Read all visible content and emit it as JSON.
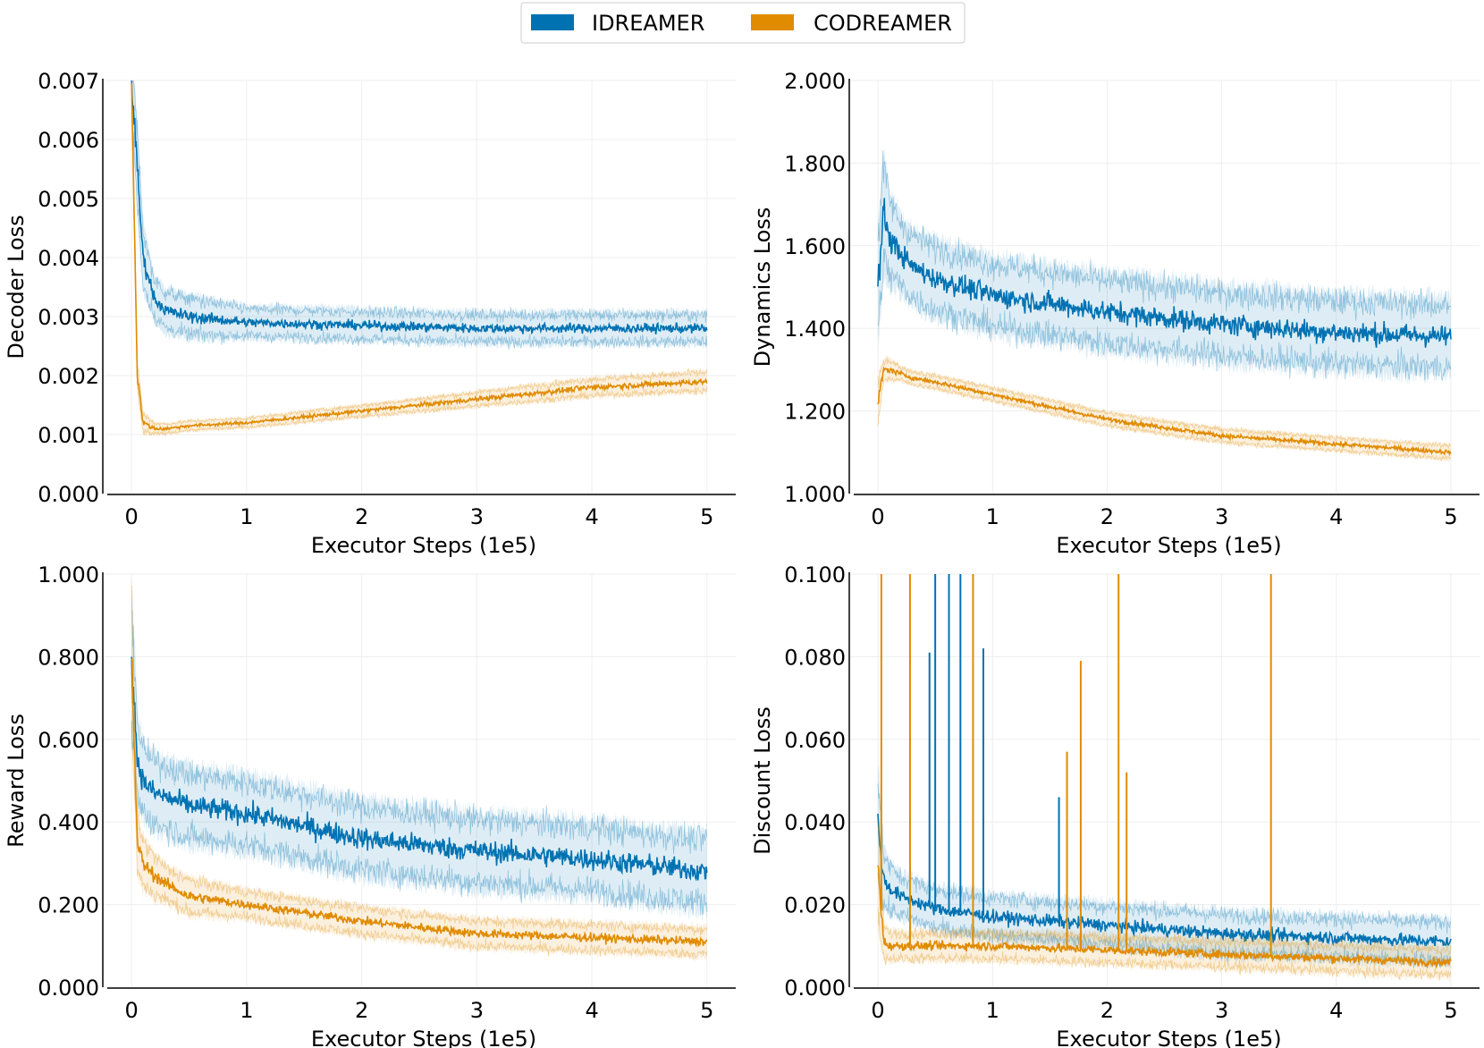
{
  "legend": {
    "entries": [
      {
        "label": "IDREAMER",
        "color": "#0072b2"
      },
      {
        "label": "CODREAMER",
        "color": "#e08b00"
      }
    ]
  },
  "chart_data": [
    {
      "type": "line",
      "xlabel": "Executor Steps (1e5)",
      "ylabel": "Decoder Loss",
      "xlim": [
        -0.25,
        5.25
      ],
      "ylim": [
        0.0,
        0.007
      ],
      "x_ticks": [
        0,
        1,
        2,
        3,
        4,
        5
      ],
      "x_tick_labels": [
        "0",
        "1",
        "2",
        "3",
        "4",
        "5"
      ],
      "y_ticks": [
        0.0,
        0.001,
        0.002,
        0.003,
        0.004,
        0.005,
        0.006,
        0.007
      ],
      "y_tick_labels": [
        "0.000",
        "0.001",
        "0.002",
        "0.003",
        "0.004",
        "0.005",
        "0.006",
        "0.007"
      ],
      "grid": true,
      "series": [
        {
          "name": "IDREAMER",
          "color": "#0072b2",
          "x": [
            0,
            0.05,
            0.1,
            0.2,
            0.3,
            0.5,
            1,
            2,
            3,
            4,
            5
          ],
          "values": [
            0.007,
            0.0055,
            0.004,
            0.0033,
            0.0031,
            0.003,
            0.0029,
            0.00285,
            0.0028,
            0.0028,
            0.0028
          ],
          "band": [
            0.0006,
            0.0008,
            0.0006,
            0.0004,
            0.0004,
            0.0004,
            0.0003,
            0.0003,
            0.0003,
            0.0003,
            0.0003
          ]
        },
        {
          "name": "CODREAMER",
          "color": "#e08b00",
          "x": [
            0,
            0.05,
            0.1,
            0.2,
            0.3,
            0.5,
            1,
            2,
            3,
            4,
            5
          ],
          "values": [
            0.007,
            0.002,
            0.0012,
            0.0011,
            0.0011,
            0.00115,
            0.0012,
            0.0014,
            0.0016,
            0.0018,
            0.0019
          ],
          "band": [
            0.0004,
            0.0003,
            0.0002,
            0.00012,
            0.0001,
            0.0001,
            0.0001,
            0.00012,
            0.00015,
            0.00018,
            0.0002
          ]
        }
      ]
    },
    {
      "type": "line",
      "xlabel": "Executor Steps (1e5)",
      "ylabel": "Dynamics Loss",
      "xlim": [
        -0.25,
        5.25
      ],
      "ylim": [
        1.0,
        2.0
      ],
      "x_ticks": [
        0,
        1,
        2,
        3,
        4,
        5
      ],
      "x_tick_labels": [
        "0",
        "1",
        "2",
        "3",
        "4",
        "5"
      ],
      "y_ticks": [
        1.0,
        1.2,
        1.4,
        1.6,
        1.8,
        2.0
      ],
      "y_tick_labels": [
        "1.000",
        "1.200",
        "1.400",
        "1.600",
        "1.800",
        "2.000"
      ],
      "grid": true,
      "series": [
        {
          "name": "IDREAMER",
          "color": "#0072b2",
          "x": [
            0,
            0.05,
            0.1,
            0.2,
            0.3,
            0.5,
            1,
            2,
            3,
            4,
            5
          ],
          "values": [
            1.5,
            1.68,
            1.62,
            1.58,
            1.55,
            1.52,
            1.48,
            1.44,
            1.41,
            1.39,
            1.38
          ],
          "band": [
            0.15,
            0.15,
            0.12,
            0.1,
            0.1,
            0.1,
            0.1,
            0.1,
            0.1,
            0.1,
            0.1
          ]
        },
        {
          "name": "CODREAMER",
          "color": "#e08b00",
          "x": [
            0,
            0.05,
            0.1,
            0.2,
            0.3,
            0.5,
            1,
            2,
            3,
            4,
            5
          ],
          "values": [
            1.22,
            1.3,
            1.3,
            1.29,
            1.28,
            1.27,
            1.24,
            1.18,
            1.14,
            1.12,
            1.1
          ],
          "band": [
            0.06,
            0.03,
            0.03,
            0.02,
            0.02,
            0.02,
            0.02,
            0.02,
            0.02,
            0.02,
            0.02
          ]
        }
      ]
    },
    {
      "type": "line",
      "xlabel": "Executor Steps (1e5)",
      "ylabel": "Reward Loss",
      "xlim": [
        -0.25,
        5.25
      ],
      "ylim": [
        0.0,
        1.0
      ],
      "x_ticks": [
        0,
        1,
        2,
        3,
        4,
        5
      ],
      "x_tick_labels": [
        "0",
        "1",
        "2",
        "3",
        "4",
        "5"
      ],
      "y_ticks": [
        0.0,
        0.2,
        0.4,
        0.6,
        0.8,
        1.0
      ],
      "y_tick_labels": [
        "0.000",
        "0.200",
        "0.400",
        "0.600",
        "0.800",
        "1.000"
      ],
      "grid": true,
      "series": [
        {
          "name": "IDREAMER",
          "color": "#0072b2",
          "x": [
            0,
            0.05,
            0.1,
            0.2,
            0.3,
            0.5,
            1,
            2,
            3,
            4,
            5
          ],
          "values": [
            0.8,
            0.55,
            0.5,
            0.47,
            0.46,
            0.44,
            0.42,
            0.36,
            0.33,
            0.31,
            0.28
          ],
          "band": [
            0.2,
            0.12,
            0.1,
            0.1,
            0.1,
            0.1,
            0.1,
            0.1,
            0.1,
            0.1,
            0.1
          ]
        },
        {
          "name": "CODREAMER",
          "color": "#e08b00",
          "x": [
            0,
            0.05,
            0.1,
            0.2,
            0.3,
            0.5,
            1,
            2,
            3,
            4,
            5
          ],
          "values": [
            0.8,
            0.35,
            0.3,
            0.27,
            0.25,
            0.22,
            0.2,
            0.16,
            0.13,
            0.12,
            0.11
          ],
          "band": [
            0.2,
            0.08,
            0.07,
            0.06,
            0.05,
            0.05,
            0.04,
            0.04,
            0.04,
            0.04,
            0.04
          ]
        }
      ]
    },
    {
      "type": "line",
      "xlabel": "Executor Steps (1e5)",
      "ylabel": "Discount Loss",
      "xlim": [
        -0.25,
        5.25
      ],
      "ylim": [
        0.0,
        0.1
      ],
      "x_ticks": [
        0,
        1,
        2,
        3,
        4,
        5
      ],
      "x_tick_labels": [
        "0",
        "1",
        "2",
        "3",
        "4",
        "5"
      ],
      "y_ticks": [
        0.0,
        0.02,
        0.04,
        0.06,
        0.08,
        0.1
      ],
      "y_tick_labels": [
        "0.000",
        "0.020",
        "0.040",
        "0.060",
        "0.080",
        "0.100"
      ],
      "grid": true,
      "series": [
        {
          "name": "IDREAMER",
          "color": "#0072b2",
          "x": [
            0,
            0.05,
            0.1,
            0.2,
            0.3,
            0.5,
            1,
            2,
            3,
            4,
            5
          ],
          "values": [
            0.04,
            0.026,
            0.024,
            0.022,
            0.021,
            0.019,
            0.017,
            0.015,
            0.013,
            0.012,
            0.011
          ],
          "band": [
            0.015,
            0.008,
            0.007,
            0.006,
            0.006,
            0.006,
            0.006,
            0.006,
            0.006,
            0.006,
            0.006
          ]
        },
        {
          "name": "CODREAMER",
          "color": "#e08b00",
          "x": [
            0,
            0.05,
            0.1,
            0.2,
            0.3,
            0.5,
            1,
            2,
            3,
            4,
            5
          ],
          "values": [
            0.03,
            0.011,
            0.01,
            0.01,
            0.01,
            0.01,
            0.01,
            0.009,
            0.008,
            0.007,
            0.006
          ],
          "band": [
            0.015,
            0.005,
            0.004,
            0.004,
            0.004,
            0.004,
            0.004,
            0.004,
            0.004,
            0.004,
            0.004
          ]
        }
      ],
      "spikes": [
        {
          "series": "CODREAMER",
          "x": 0.03,
          "y": 0.1
        },
        {
          "series": "CODREAMER",
          "x": 0.28,
          "y": 0.1
        },
        {
          "series": "IDREAMER",
          "x": 0.45,
          "y": 0.081
        },
        {
          "series": "IDREAMER",
          "x": 0.5,
          "y": 0.1
        },
        {
          "series": "IDREAMER",
          "x": 0.62,
          "y": 0.1
        },
        {
          "series": "IDREAMER",
          "x": 0.72,
          "y": 0.1
        },
        {
          "series": "CODREAMER",
          "x": 0.83,
          "y": 0.1
        },
        {
          "series": "IDREAMER",
          "x": 0.92,
          "y": 0.082
        },
        {
          "series": "IDREAMER",
          "x": 1.58,
          "y": 0.046
        },
        {
          "series": "CODREAMER",
          "x": 1.65,
          "y": 0.057
        },
        {
          "series": "CODREAMER",
          "x": 1.77,
          "y": 0.079
        },
        {
          "series": "CODREAMER",
          "x": 2.1,
          "y": 0.1
        },
        {
          "series": "CODREAMER",
          "x": 2.17,
          "y": 0.052
        },
        {
          "series": "CODREAMER",
          "x": 3.43,
          "y": 0.1
        }
      ]
    }
  ]
}
